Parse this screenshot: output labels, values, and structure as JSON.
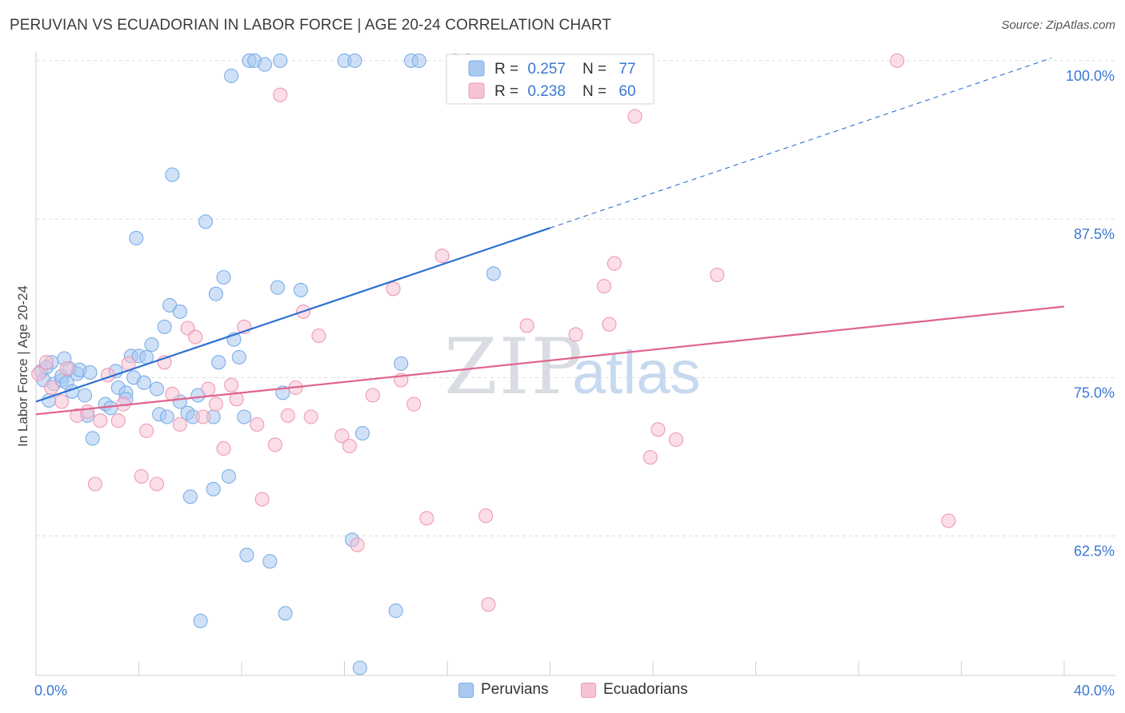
{
  "title": "PERUVIAN VS ECUADORIAN IN LABOR FORCE | AGE 20-24 CORRELATION CHART",
  "source": "Source: ZipAtlas.com",
  "watermark": {
    "zip": "ZIP",
    "atlas": "atlas"
  },
  "chart_data": {
    "type": "scatter",
    "xlabel": "",
    "ylabel": "In Labor Force | Age 20-24",
    "xlim": [
      0,
      40
    ],
    "ylim": [
      51.5,
      101
    ],
    "x_tick_labels": [
      {
        "value": 0,
        "label": "0.0%"
      },
      {
        "value": 40,
        "label": "40.0%"
      }
    ],
    "y_tick_labels": [
      {
        "value": 100,
        "label": "100.0%"
      },
      {
        "value": 87.5,
        "label": "87.5%"
      },
      {
        "value": 75,
        "label": "75.0%"
      },
      {
        "value": 62.5,
        "label": "62.5%"
      }
    ],
    "gridlines_y": [
      100,
      87.5,
      75,
      62.5
    ],
    "x_minor_ticks": [
      0,
      4,
      8,
      12,
      16,
      20,
      24,
      28,
      32,
      36,
      40
    ],
    "legend": {
      "position": "top-center",
      "entries": [
        {
          "series": "Peruvians",
          "r_label": "R =",
          "r_value": "0.257",
          "n_label": "N =",
          "n_value": "77"
        },
        {
          "series": "Ecuadorians",
          "r_label": "R =",
          "r_value": "0.238",
          "n_label": "N =",
          "n_value": "60"
        }
      ]
    },
    "series": [
      {
        "name": "Peruvians",
        "color": "#7aaee8",
        "fill": "#a9c9f0",
        "line_color": "#2e6fd0",
        "trend": {
          "x0": 0,
          "y0": 73.1,
          "x1": 20,
          "y1": 86.8,
          "x_dash_end": 39.5,
          "y_dash_end": 100.2
        },
        "points": [
          [
            0.2,
            75.5
          ],
          [
            0.3,
            74.8
          ],
          [
            0.5,
            73.2
          ],
          [
            0.6,
            76.2
          ],
          [
            0.7,
            74.5
          ],
          [
            1.0,
            74.8
          ],
          [
            1.0,
            75.1
          ],
          [
            1.2,
            74.6
          ],
          [
            1.3,
            75.7
          ],
          [
            1.4,
            73.9
          ],
          [
            1.6,
            75.3
          ],
          [
            1.7,
            75.6
          ],
          [
            1.9,
            73.6
          ],
          [
            2.0,
            72.0
          ],
          [
            2.1,
            75.4
          ],
          [
            2.2,
            70.2
          ],
          [
            2.7,
            72.9
          ],
          [
            2.9,
            72.6
          ],
          [
            3.1,
            75.5
          ],
          [
            3.2,
            74.2
          ],
          [
            3.5,
            73.8
          ],
          [
            3.5,
            73.3
          ],
          [
            3.7,
            76.7
          ],
          [
            3.8,
            75.0
          ],
          [
            3.9,
            86.0
          ],
          [
            4.0,
            76.7
          ],
          [
            4.2,
            74.6
          ],
          [
            4.3,
            76.6
          ],
          [
            4.5,
            77.6
          ],
          [
            4.7,
            74.1
          ],
          [
            4.8,
            72.1
          ],
          [
            5.0,
            79.0
          ],
          [
            5.1,
            71.9
          ],
          [
            5.2,
            80.7
          ],
          [
            5.3,
            91.0
          ],
          [
            5.6,
            80.2
          ],
          [
            5.6,
            73.1
          ],
          [
            5.9,
            72.2
          ],
          [
            6.0,
            65.6
          ],
          [
            6.1,
            71.9
          ],
          [
            6.3,
            73.6
          ],
          [
            6.4,
            55.8
          ],
          [
            6.6,
            87.3
          ],
          [
            6.9,
            71.9
          ],
          [
            6.9,
            66.2
          ],
          [
            7.0,
            81.6
          ],
          [
            7.1,
            76.2
          ],
          [
            7.3,
            82.9
          ],
          [
            7.5,
            67.2
          ],
          [
            7.6,
            98.8
          ],
          [
            7.7,
            78.0
          ],
          [
            7.9,
            76.6
          ],
          [
            8.1,
            71.9
          ],
          [
            8.2,
            61.0
          ],
          [
            8.3,
            100.0
          ],
          [
            8.5,
            100.0
          ],
          [
            8.9,
            99.7
          ],
          [
            9.1,
            60.5
          ],
          [
            9.4,
            82.1
          ],
          [
            9.5,
            100.0
          ],
          [
            9.6,
            73.8
          ],
          [
            9.7,
            56.4
          ],
          [
            10.3,
            81.9
          ],
          [
            12.0,
            100.0
          ],
          [
            12.3,
            62.2
          ],
          [
            12.4,
            100.0
          ],
          [
            12.6,
            52.1
          ],
          [
            12.7,
            70.6
          ],
          [
            14.0,
            56.6
          ],
          [
            14.2,
            76.1
          ],
          [
            14.6,
            100.0
          ],
          [
            14.9,
            100.0
          ],
          [
            16.3,
            100.0
          ],
          [
            16.8,
            100.0
          ],
          [
            17.8,
            83.2
          ],
          [
            0.4,
            75.8
          ],
          [
            1.1,
            76.5
          ]
        ]
      },
      {
        "name": "Ecuadorians",
        "color": "#ee9ab5",
        "fill": "#f7c3d3",
        "line_color": "#e0628d",
        "trend": {
          "x0": 0,
          "y0": 72.1,
          "x1": 40,
          "y1": 80.6
        },
        "points": [
          [
            0.1,
            75.3
          ],
          [
            0.4,
            76.2
          ],
          [
            0.6,
            74.2
          ],
          [
            1.0,
            73.1
          ],
          [
            1.2,
            75.7
          ],
          [
            1.6,
            72.0
          ],
          [
            2.0,
            72.3
          ],
          [
            2.3,
            66.6
          ],
          [
            2.5,
            71.6
          ],
          [
            2.8,
            75.2
          ],
          [
            3.2,
            71.6
          ],
          [
            3.4,
            72.9
          ],
          [
            3.6,
            76.1
          ],
          [
            4.1,
            67.2
          ],
          [
            4.3,
            70.8
          ],
          [
            4.7,
            66.6
          ],
          [
            5.0,
            76.2
          ],
          [
            5.3,
            73.7
          ],
          [
            5.6,
            71.3
          ],
          [
            5.9,
            78.9
          ],
          [
            6.2,
            78.2
          ],
          [
            6.5,
            71.9
          ],
          [
            6.7,
            74.1
          ],
          [
            7.0,
            72.9
          ],
          [
            7.3,
            69.4
          ],
          [
            7.6,
            74.4
          ],
          [
            7.8,
            73.3
          ],
          [
            8.1,
            79.0
          ],
          [
            8.6,
            71.3
          ],
          [
            8.8,
            65.4
          ],
          [
            9.3,
            69.7
          ],
          [
            9.5,
            97.3
          ],
          [
            9.8,
            72.0
          ],
          [
            10.1,
            74.2
          ],
          [
            10.4,
            80.2
          ],
          [
            10.7,
            71.9
          ],
          [
            11.0,
            78.3
          ],
          [
            11.9,
            70.4
          ],
          [
            12.2,
            69.6
          ],
          [
            12.5,
            61.8
          ],
          [
            13.1,
            73.6
          ],
          [
            13.9,
            82.0
          ],
          [
            14.2,
            74.8
          ],
          [
            14.7,
            72.9
          ],
          [
            15.2,
            63.9
          ],
          [
            15.8,
            84.6
          ],
          [
            17.5,
            64.1
          ],
          [
            17.6,
            57.1
          ],
          [
            19.1,
            79.1
          ],
          [
            21.0,
            78.4
          ],
          [
            22.1,
            82.2
          ],
          [
            22.3,
            79.2
          ],
          [
            22.5,
            84.0
          ],
          [
            23.3,
            95.6
          ],
          [
            23.9,
            68.7
          ],
          [
            24.2,
            70.9
          ],
          [
            24.9,
            70.1
          ],
          [
            26.5,
            83.1
          ],
          [
            33.5,
            100.0
          ],
          [
            35.5,
            63.7
          ]
        ]
      }
    ]
  }
}
